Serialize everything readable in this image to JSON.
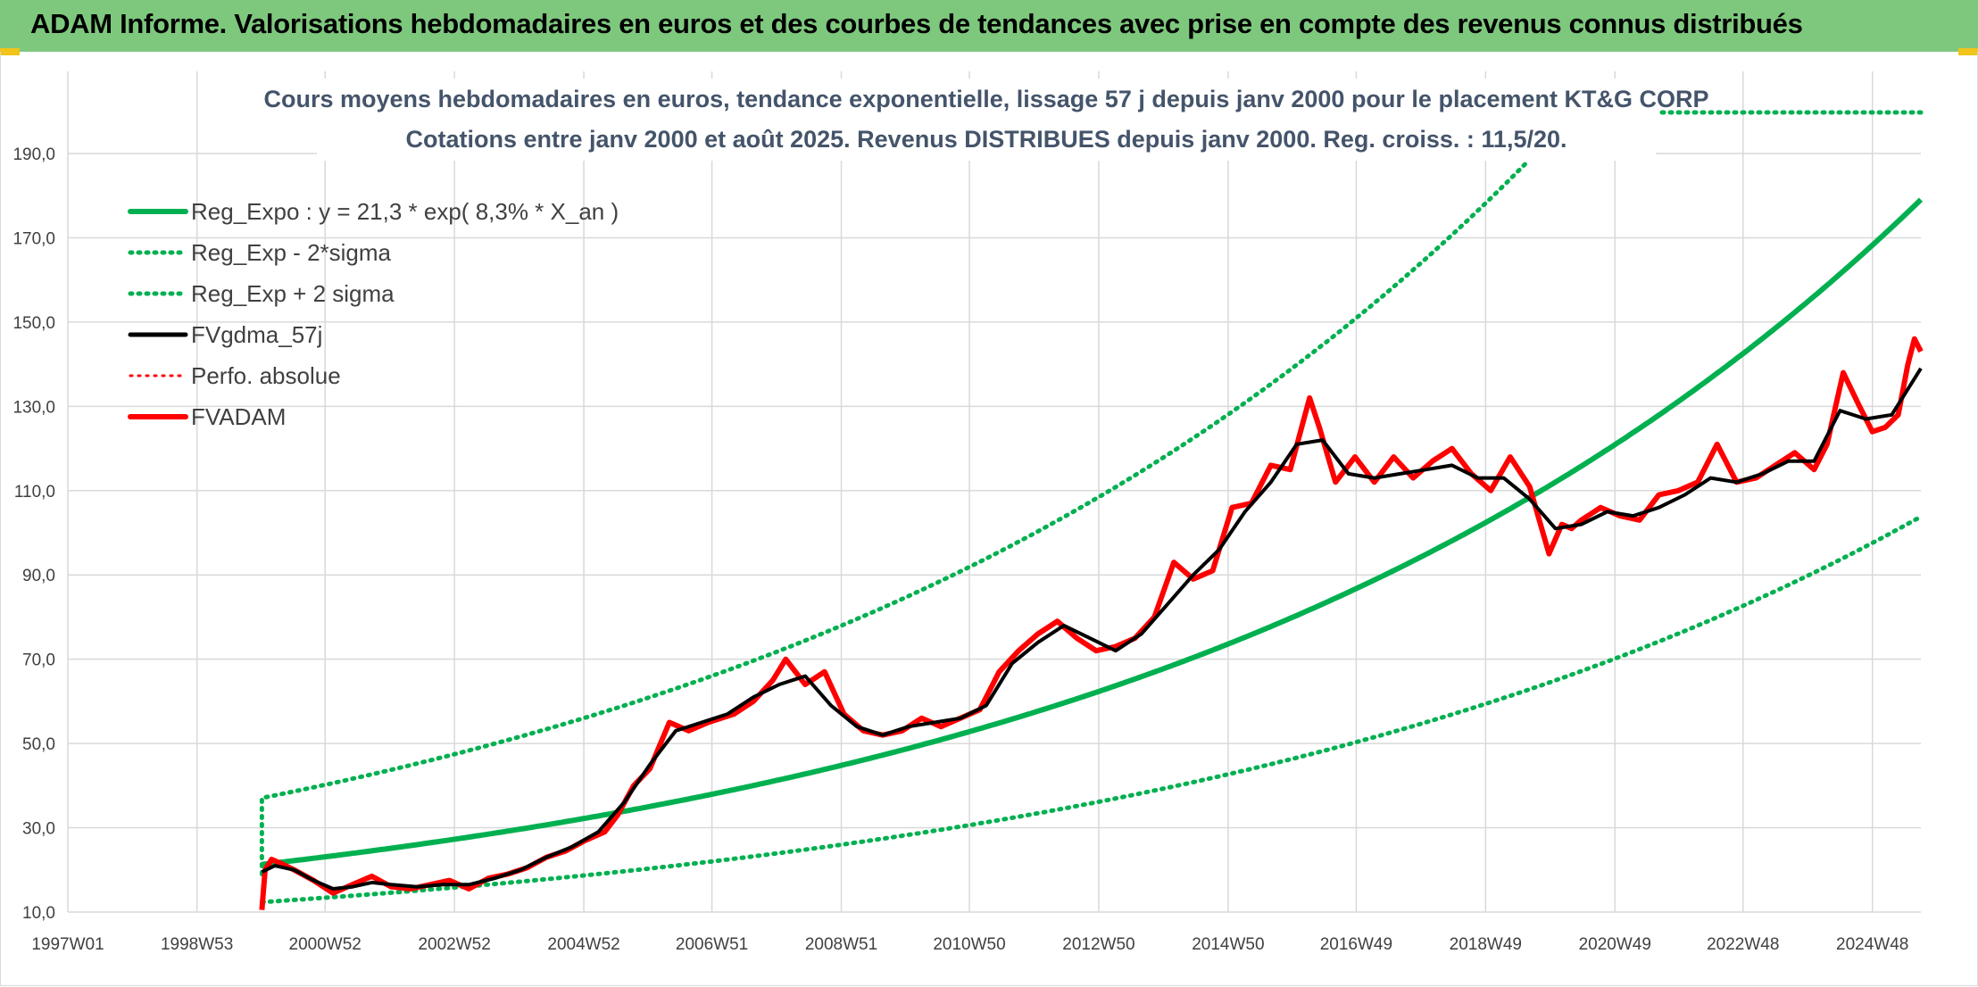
{
  "header": {
    "title": "ADAM Informe. Valorisations hebdomadaires en euros et des courbes de tendances avec prise en compte des revenus connus distribués"
  },
  "colors": {
    "banner": "#7ec87e",
    "reg": "#00b050",
    "gdma": "#000000",
    "adam": "#ff0000",
    "perfo": "#ff0000",
    "grid": "#d9d9d9"
  },
  "chart_data": {
    "type": "line",
    "title": "Cours moyens hebdomadaires en euros, tendance exponentielle, lissage 57 j depuis janv 2000 pour le placement KT&G CORP",
    "subtitle": "Cotations entre janv 2000 et août 2025. Revenus DISTRIBUES depuis janv 2000. Reg. croiss. : 11,5/20.",
    "xlabel": "",
    "ylabel": "",
    "ylim": [
      10,
      190
    ],
    "y_ticks": [
      "190,0",
      "170,0",
      "150,0",
      "130,0",
      "110,0",
      "90,0",
      "70,0",
      "50,0",
      "30,0",
      "10,0"
    ],
    "x_ticks": [
      "1997W01",
      "1998W53",
      "2000W52",
      "2002W52",
      "2004W52",
      "2006W51",
      "2008W51",
      "2010W50",
      "2012W50",
      "2014W50",
      "2016W49",
      "2018W49",
      "2020W49",
      "2022W48",
      "2024W48"
    ],
    "x_range": [
      1997.0,
      2025.65
    ],
    "grid": true,
    "legend_position": "top-left",
    "legend": [
      {
        "label": "Reg_Expo : y = 21,3 * exp( 8,3% *  X_an )",
        "color": "#00b050",
        "style": "solid",
        "width": 6
      },
      {
        "label": "Reg_Exp - 2*sigma",
        "color": "#00b050",
        "style": "dotted",
        "width": 5
      },
      {
        "label": "Reg_Exp + 2 sigma",
        "color": "#00b050",
        "style": "dotted",
        "width": 5
      },
      {
        "label": "FVgdma_57j",
        "color": "#000000",
        "style": "solid",
        "width": 5
      },
      {
        "label": "Perfo. absolue",
        "color": "#ff0000",
        "style": "dotted",
        "width": 3
      },
      {
        "label": "FVADAM",
        "color": "#ff0000",
        "style": "solid",
        "width": 6
      }
    ],
    "regression": {
      "a": 21.3,
      "rate": 0.083,
      "start_year": 2000.0,
      "end_year": 2025.65,
      "minus_2sigma_factor": 0.58,
      "plus_2sigma_factor": 1.74
    },
    "series": [
      {
        "name": "FVADAM",
        "x": [
          2000.0,
          2000.05,
          2000.15,
          2000.3,
          2000.5,
          2000.8,
          2001.1,
          2001.4,
          2001.7,
          2002.0,
          2002.3,
          2002.6,
          2002.9,
          2003.2,
          2003.5,
          2003.8,
          2004.1,
          2004.4,
          2004.7,
          2005.0,
          2005.3,
          2005.5,
          2005.75,
          2006.0,
          2006.3,
          2006.6,
          2006.9,
          2007.1,
          2007.3,
          2007.6,
          2007.9,
          2008.1,
          2008.4,
          2008.7,
          2009.0,
          2009.3,
          2009.6,
          2009.9,
          2010.2,
          2010.5,
          2010.8,
          2011.1,
          2011.4,
          2011.7,
          2012.0,
          2012.3,
          2012.6,
          2012.9,
          2013.2,
          2013.5,
          2013.8,
          2014.1,
          2014.4,
          2014.7,
          2015.0,
          2015.3,
          2015.6,
          2015.9,
          2016.2,
          2016.35,
          2016.6,
          2016.9,
          2017.2,
          2017.5,
          2017.8,
          2018.1,
          2018.4,
          2018.7,
          2019.0,
          2019.3,
          2019.6,
          2019.9,
          2020.1,
          2020.25,
          2020.4,
          2020.7,
          2021.0,
          2021.3,
          2021.6,
          2021.9,
          2022.2,
          2022.5,
          2022.8,
          2023.1,
          2023.4,
          2023.7,
          2024.0,
          2024.2,
          2024.45,
          2024.7,
          2024.9,
          2025.1,
          2025.3,
          2025.45,
          2025.55,
          2025.65
        ],
        "values": [
          10.5,
          20.0,
          22.5,
          21.5,
          20.0,
          17.5,
          14.5,
          16.5,
          18.5,
          16.0,
          15.5,
          16.5,
          17.5,
          15.5,
          18.0,
          19.0,
          20.5,
          23.0,
          24.5,
          27.0,
          29.0,
          33.0,
          40.0,
          44.0,
          55.0,
          53.0,
          55.0,
          56.0,
          57.0,
          60.0,
          65.0,
          70.0,
          64.0,
          67.0,
          57.0,
          53.0,
          52.0,
          53.0,
          56.0,
          54.0,
          56.0,
          58.0,
          67.0,
          72.0,
          76.0,
          79.0,
          75.0,
          72.0,
          73.0,
          75.0,
          80.0,
          93.0,
          89.0,
          91.0,
          106.0,
          107.0,
          116.0,
          115.0,
          132.0,
          125.0,
          112.0,
          118.0,
          112.0,
          118.0,
          113.0,
          117.0,
          120.0,
          114.0,
          110.0,
          118.0,
          111.0,
          95.0,
          102.0,
          101.0,
          103.0,
          106.0,
          104.0,
          103.0,
          109.0,
          110.0,
          112.0,
          121.0,
          112.0,
          113.0,
          116.0,
          119.0,
          115.0,
          121.0,
          138.0,
          130.0,
          124.0,
          125.0,
          128.0,
          140.0,
          146.0,
          143.0
        ]
      },
      {
        "name": "FVgdma_57j",
        "x": [
          2000.0,
          2000.2,
          2000.5,
          2000.8,
          2001.1,
          2001.4,
          2001.7,
          2002.0,
          2002.4,
          2002.8,
          2003.2,
          2003.6,
          2004.0,
          2004.4,
          2004.8,
          2005.2,
          2005.6,
          2006.0,
          2006.4,
          2006.8,
          2007.2,
          2007.6,
          2008.0,
          2008.4,
          2008.8,
          2009.2,
          2009.6,
          2010.0,
          2010.4,
          2010.8,
          2011.2,
          2011.6,
          2012.0,
          2012.4,
          2012.8,
          2013.2,
          2013.6,
          2014.0,
          2014.4,
          2014.8,
          2015.2,
          2015.6,
          2016.0,
          2016.4,
          2016.8,
          2017.2,
          2017.6,
          2018.0,
          2018.4,
          2018.8,
          2019.2,
          2019.6,
          2020.0,
          2020.4,
          2020.8,
          2021.2,
          2021.6,
          2022.0,
          2022.4,
          2022.8,
          2023.2,
          2023.6,
          2024.0,
          2024.4,
          2024.8,
          2025.2,
          2025.65
        ],
        "values": [
          19.5,
          21.0,
          20.0,
          17.5,
          15.5,
          16.0,
          17.0,
          16.5,
          16.0,
          16.5,
          16.5,
          18.0,
          20.0,
          23.0,
          25.5,
          29.0,
          36.0,
          45.0,
          53.0,
          55.0,
          57.0,
          61.0,
          64.0,
          66.0,
          59.0,
          54.0,
          52.0,
          54.0,
          55.0,
          56.0,
          59.0,
          69.0,
          74.0,
          78.0,
          75.0,
          72.0,
          76.0,
          83.0,
          90.0,
          96.0,
          105.0,
          112.0,
          121.0,
          122.0,
          114.0,
          113.0,
          114.0,
          115.0,
          116.0,
          113.0,
          113.0,
          108.0,
          101.0,
          102.0,
          105.0,
          104.0,
          106.0,
          109.0,
          113.0,
          112.0,
          114.0,
          117.0,
          117.0,
          129.0,
          127.0,
          128.0,
          139.0
        ]
      }
    ]
  }
}
